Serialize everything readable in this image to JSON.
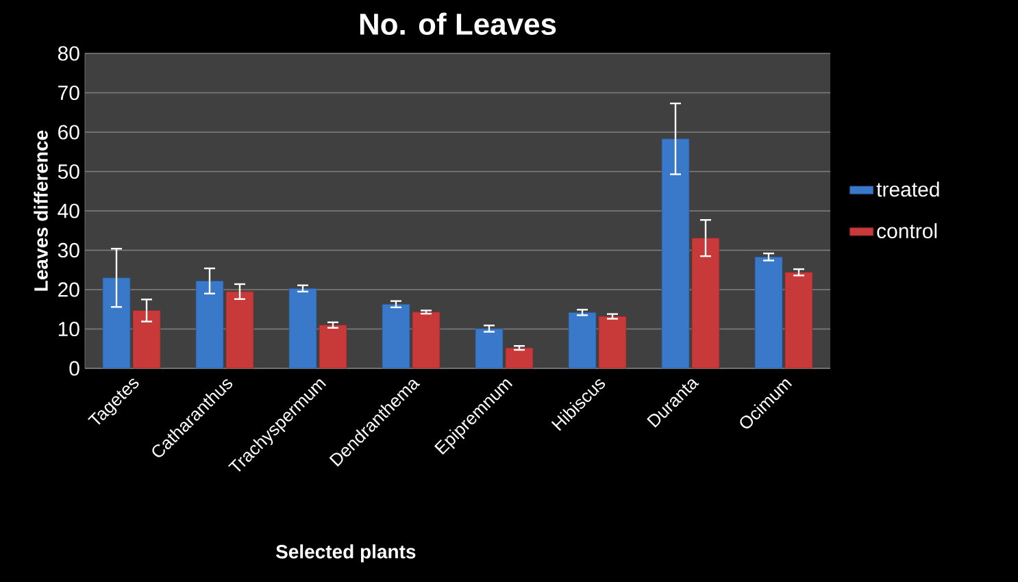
{
  "chart_data": {
    "type": "bar",
    "title": "No. of Leaves",
    "xlabel": "Selected plants",
    "ylabel": "Leaves difference",
    "categories": [
      "Tagetes",
      "Catharanthus",
      "Trachyspermum",
      "Dendranthema",
      "Epipremnum",
      "Hibiscus",
      "Duranta",
      "Ocimum"
    ],
    "series": [
      {
        "name": "treated",
        "color": "#3a78c9",
        "values": [
          23.0,
          22.2,
          20.3,
          16.3,
          10.1,
          14.2,
          58.3,
          28.3
        ],
        "errors": [
          7.4,
          3.2,
          0.8,
          0.8,
          0.8,
          0.7,
          9.0,
          0.9
        ]
      },
      {
        "name": "control",
        "color": "#c83a3a",
        "values": [
          14.7,
          19.5,
          11.0,
          14.3,
          5.2,
          13.2,
          33.1,
          24.4
        ],
        "errors": [
          2.8,
          1.9,
          0.7,
          0.4,
          0.5,
          0.6,
          4.6,
          0.8
        ]
      }
    ],
    "ylim": [
      0,
      80
    ],
    "yticks": [
      0,
      10,
      20,
      30,
      40,
      50,
      60,
      70,
      80
    ],
    "grid": "y",
    "legend": "right"
  }
}
